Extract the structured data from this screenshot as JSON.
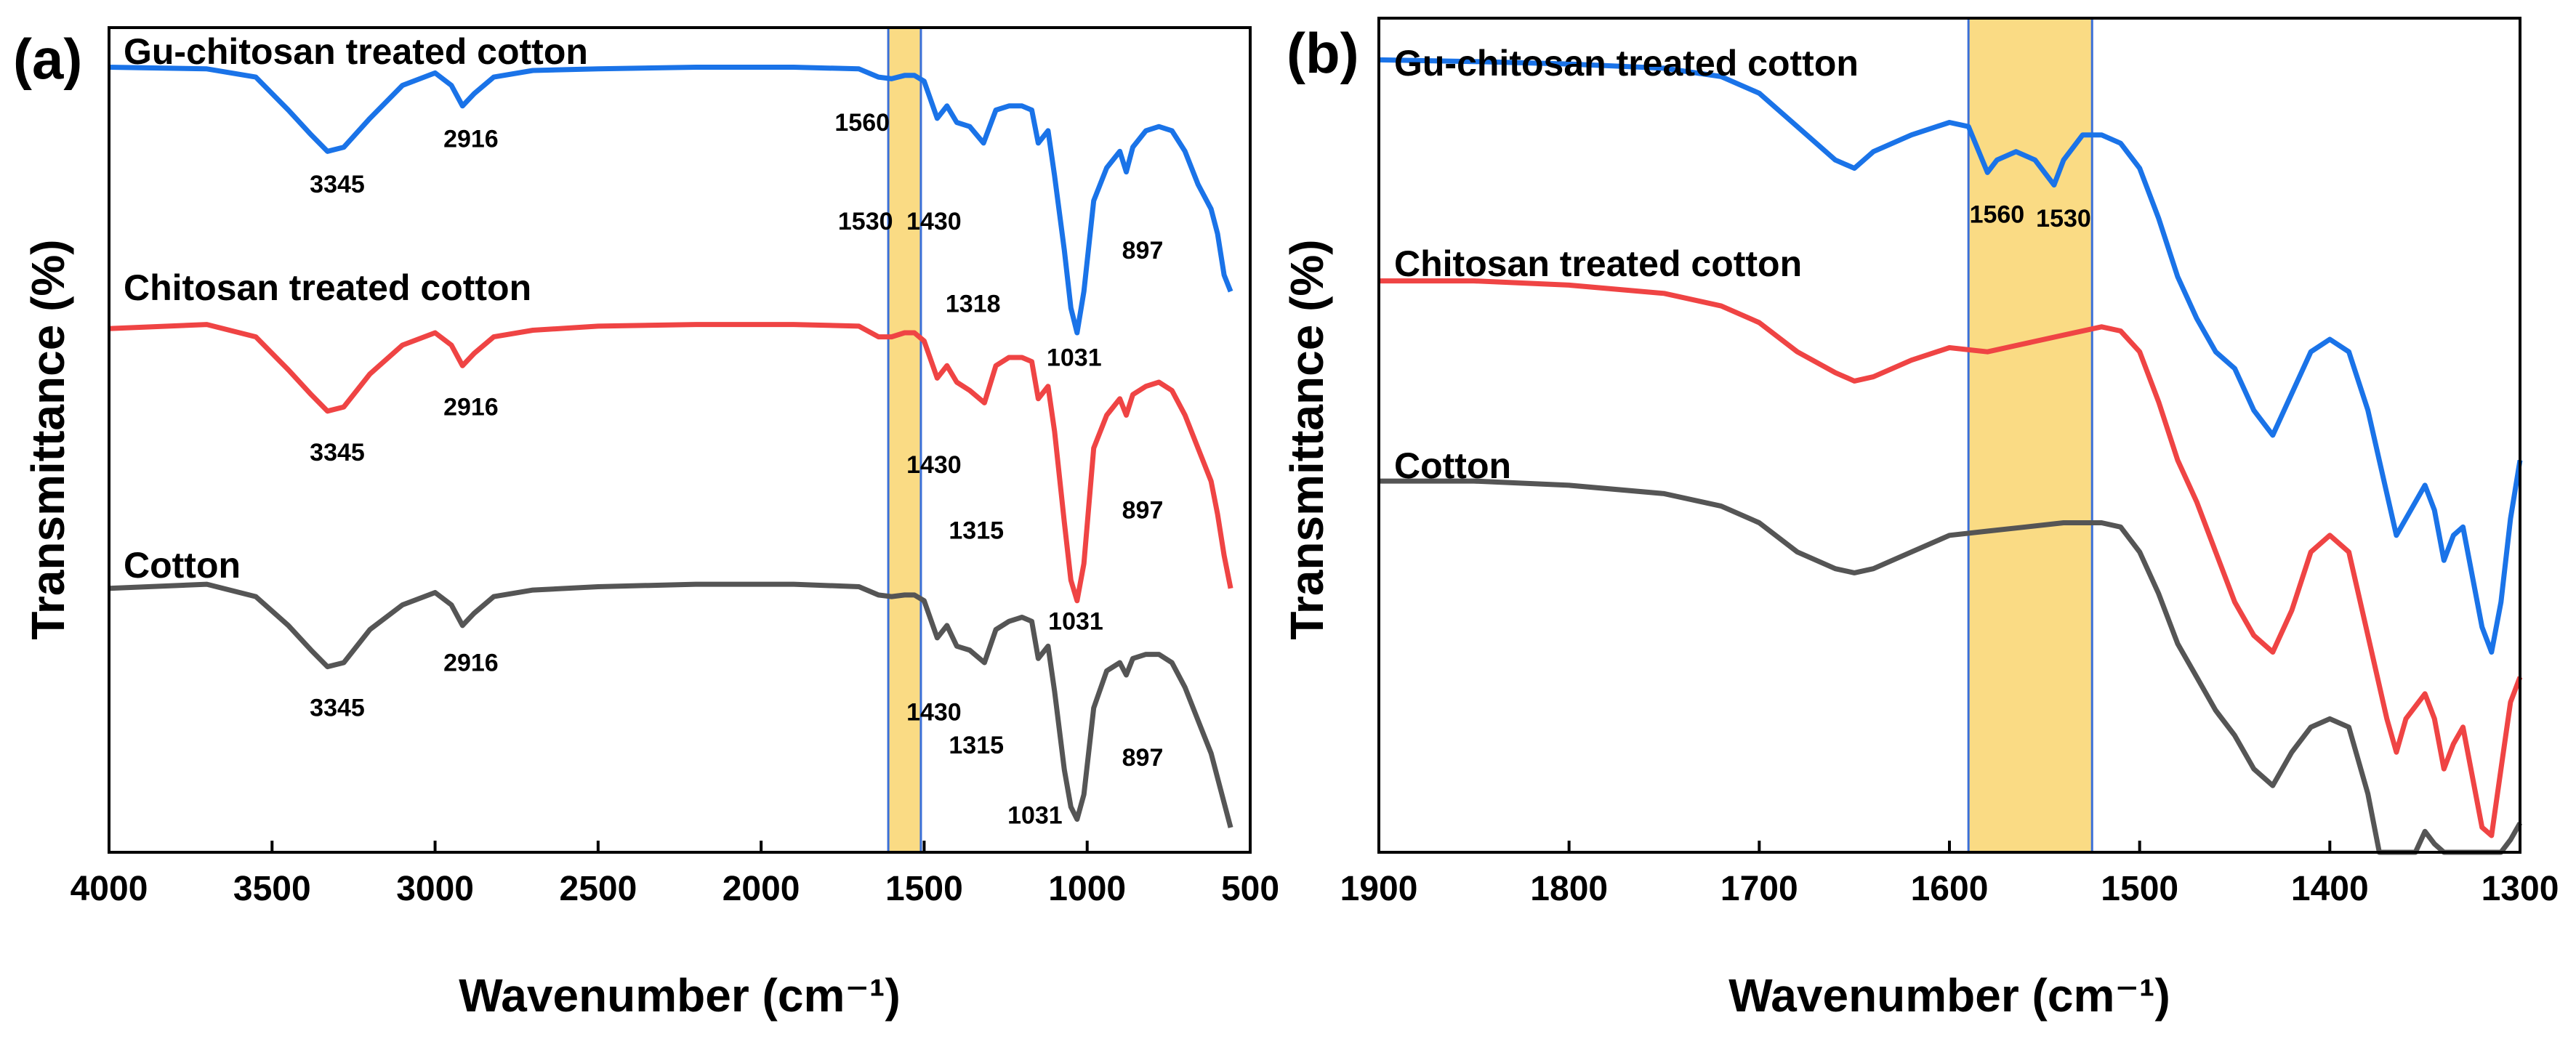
{
  "colors": {
    "gu": "#1a73e8",
    "chitosan": "#ef4444",
    "cotton": "#555555",
    "highlight": "#f9d56e",
    "highlight_edge": "#3a6fd8"
  },
  "chart_data": [
    {
      "type": "line",
      "panel": "(a)",
      "xlabel": "Wavenumber (cm⁻¹)",
      "ylabel": "Transmittance (%)",
      "xlim": [
        4000,
        500
      ],
      "x_reversed": true,
      "xticks": [
        4000,
        3500,
        3000,
        2500,
        2000,
        1500,
        1000,
        500
      ],
      "ylim": [
        0,
        10
      ],
      "highlight_band": [
        1610,
        1510
      ],
      "series": [
        {
          "name": "Gu-chitosan treated cotton",
          "color_key": "gu",
          "x": [
            4000,
            3700,
            3550,
            3450,
            3380,
            3330,
            3280,
            3200,
            3100,
            3000,
            2950,
            2916,
            2880,
            2820,
            2700,
            2500,
            2200,
            1900,
            1700,
            1640,
            1600,
            1560,
            1530,
            1500,
            1460,
            1430,
            1400,
            1360,
            1318,
            1280,
            1240,
            1200,
            1170,
            1150,
            1120,
            1100,
            1070,
            1050,
            1031,
            1010,
            980,
            940,
            900,
            880,
            860,
            820,
            780,
            740,
            700,
            660,
            620,
            600,
            580,
            560
          ],
          "y": [
            9.52,
            9.5,
            9.4,
            9.0,
            8.7,
            8.5,
            8.55,
            8.9,
            9.3,
            9.45,
            9.3,
            9.05,
            9.2,
            9.4,
            9.48,
            9.5,
            9.52,
            9.52,
            9.5,
            9.4,
            9.38,
            9.42,
            9.42,
            9.35,
            8.9,
            9.05,
            8.85,
            8.8,
            8.6,
            9.0,
            9.05,
            9.05,
            9.0,
            8.6,
            8.75,
            8.2,
            7.3,
            6.6,
            6.3,
            6.8,
            7.9,
            8.3,
            8.5,
            8.25,
            8.55,
            8.75,
            8.8,
            8.75,
            8.5,
            8.1,
            7.8,
            7.5,
            7.0,
            6.8
          ]
        },
        {
          "name": "Chitosan treated cotton",
          "color_key": "chitosan",
          "x": [
            4000,
            3700,
            3550,
            3450,
            3380,
            3330,
            3280,
            3200,
            3100,
            3000,
            2950,
            2916,
            2880,
            2820,
            2700,
            2500,
            2200,
            1900,
            1700,
            1640,
            1600,
            1560,
            1530,
            1500,
            1460,
            1430,
            1400,
            1360,
            1315,
            1280,
            1240,
            1200,
            1170,
            1150,
            1120,
            1100,
            1070,
            1050,
            1031,
            1010,
            980,
            940,
            900,
            880,
            860,
            820,
            780,
            740,
            700,
            660,
            620,
            600,
            580,
            560
          ],
          "y": [
            6.35,
            6.4,
            6.25,
            5.85,
            5.55,
            5.35,
            5.4,
            5.8,
            6.15,
            6.3,
            6.15,
            5.9,
            6.05,
            6.25,
            6.33,
            6.38,
            6.4,
            6.4,
            6.38,
            6.25,
            6.25,
            6.3,
            6.3,
            6.2,
            5.75,
            5.9,
            5.7,
            5.6,
            5.45,
            5.9,
            6.0,
            6.0,
            5.95,
            5.5,
            5.65,
            5.1,
            4.0,
            3.3,
            3.05,
            3.5,
            4.9,
            5.3,
            5.5,
            5.3,
            5.55,
            5.65,
            5.7,
            5.6,
            5.3,
            4.9,
            4.5,
            4.1,
            3.6,
            3.2
          ]
        },
        {
          "name": "Cotton",
          "color_key": "cotton",
          "x": [
            4000,
            3700,
            3550,
            3450,
            3380,
            3330,
            3280,
            3200,
            3100,
            3000,
            2950,
            2916,
            2880,
            2820,
            2700,
            2500,
            2200,
            1900,
            1700,
            1640,
            1600,
            1560,
            1530,
            1500,
            1460,
            1430,
            1400,
            1360,
            1315,
            1280,
            1240,
            1200,
            1170,
            1150,
            1120,
            1100,
            1070,
            1050,
            1031,
            1010,
            980,
            940,
            900,
            880,
            860,
            820,
            780,
            740,
            700,
            660,
            620,
            600,
            580,
            560
          ],
          "y": [
            3.2,
            3.25,
            3.1,
            2.75,
            2.45,
            2.25,
            2.3,
            2.7,
            3.0,
            3.15,
            3.0,
            2.75,
            2.9,
            3.1,
            3.18,
            3.22,
            3.25,
            3.25,
            3.22,
            3.12,
            3.1,
            3.12,
            3.12,
            3.05,
            2.6,
            2.75,
            2.5,
            2.45,
            2.3,
            2.7,
            2.8,
            2.85,
            2.8,
            2.35,
            2.5,
            1.95,
            1.0,
            0.55,
            0.4,
            0.7,
            1.75,
            2.2,
            2.3,
            2.15,
            2.35,
            2.4,
            2.4,
            2.3,
            2.0,
            1.6,
            1.2,
            0.9,
            0.6,
            0.3
          ]
        }
      ],
      "series_labels": [
        "Gu-chitosan treated cotton",
        "Chitosan treated cotton",
        "Cotton"
      ],
      "annotations": [
        {
          "text": "3345",
          "x": 3300,
          "y": 8.0
        },
        {
          "text": "2916",
          "x": 2890,
          "y": 8.55
        },
        {
          "text": "1560",
          "x": 1690,
          "y": 8.75
        },
        {
          "text": "1530",
          "x": 1680,
          "y": 7.55
        },
        {
          "text": "1430",
          "x": 1470,
          "y": 7.55
        },
        {
          "text": "1318",
          "x": 1350,
          "y": 6.55
        },
        {
          "text": "1031",
          "x": 1040,
          "y": 5.9
        },
        {
          "text": "897",
          "x": 830,
          "y": 7.2
        },
        {
          "text": "3345",
          "x": 3300,
          "y": 4.75
        },
        {
          "text": "2916",
          "x": 2890,
          "y": 5.3
        },
        {
          "text": "1430",
          "x": 1470,
          "y": 4.6
        },
        {
          "text": "1315",
          "x": 1340,
          "y": 3.8
        },
        {
          "text": "1031",
          "x": 1035,
          "y": 2.7
        },
        {
          "text": "897",
          "x": 830,
          "y": 4.05
        },
        {
          "text": "3345",
          "x": 3300,
          "y": 1.65
        },
        {
          "text": "2916",
          "x": 2890,
          "y": 2.2
        },
        {
          "text": "1430",
          "x": 1470,
          "y": 1.6
        },
        {
          "text": "1315",
          "x": 1340,
          "y": 1.2
        },
        {
          "text": "1031",
          "x": 1160,
          "y": 0.35
        },
        {
          "text": "897",
          "x": 830,
          "y": 1.05
        }
      ]
    },
    {
      "type": "line",
      "panel": "(b)",
      "xlabel": "Wavenumber (cm⁻¹)",
      "ylabel": "Transmittance (%)",
      "xlim": [
        1900,
        1300
      ],
      "x_reversed": true,
      "xticks": [
        1900,
        1800,
        1700,
        1600,
        1500,
        1400,
        1300
      ],
      "ylim": [
        0,
        10
      ],
      "highlight_band": [
        1590,
        1525
      ],
      "series": [
        {
          "name": "Gu-chitosan treated cotton",
          "color_key": "gu",
          "x": [
            1900,
            1850,
            1800,
            1750,
            1720,
            1700,
            1680,
            1660,
            1650,
            1640,
            1620,
            1600,
            1590,
            1580,
            1575,
            1565,
            1555,
            1545,
            1540,
            1530,
            1520,
            1510,
            1500,
            1490,
            1480,
            1470,
            1460,
            1450,
            1440,
            1430,
            1420,
            1410,
            1400,
            1390,
            1380,
            1370,
            1365,
            1360,
            1350,
            1345,
            1340,
            1335,
            1330,
            1325,
            1320,
            1315,
            1310,
            1305,
            1300
          ],
          "y": [
            9.5,
            9.48,
            9.45,
            9.4,
            9.3,
            9.1,
            8.7,
            8.3,
            8.2,
            8.4,
            8.6,
            8.75,
            8.7,
            8.15,
            8.3,
            8.4,
            8.3,
            8.0,
            8.3,
            8.6,
            8.6,
            8.5,
            8.2,
            7.6,
            6.9,
            6.4,
            6.0,
            5.8,
            5.3,
            5.0,
            5.5,
            6.0,
            6.15,
            6.0,
            5.3,
            4.3,
            3.8,
            4.0,
            4.4,
            4.1,
            3.5,
            3.8,
            3.9,
            3.3,
            2.7,
            2.4,
            3.0,
            4.0,
            4.7
          ]
        },
        {
          "name": "Chitosan treated cotton",
          "color_key": "chitosan",
          "x": [
            1900,
            1850,
            1800,
            1750,
            1720,
            1700,
            1680,
            1660,
            1650,
            1640,
            1620,
            1600,
            1580,
            1560,
            1540,
            1520,
            1510,
            1500,
            1490,
            1480,
            1470,
            1460,
            1450,
            1440,
            1430,
            1420,
            1410,
            1400,
            1390,
            1380,
            1370,
            1365,
            1360,
            1350,
            1345,
            1340,
            1335,
            1330,
            1325,
            1320,
            1315,
            1310,
            1305,
            1300
          ],
          "y": [
            6.85,
            6.85,
            6.8,
            6.7,
            6.55,
            6.35,
            6.0,
            5.75,
            5.65,
            5.7,
            5.9,
            6.05,
            6.0,
            6.1,
            6.2,
            6.3,
            6.25,
            6.0,
            5.4,
            4.7,
            4.2,
            3.6,
            3.0,
            2.6,
            2.4,
            2.9,
            3.6,
            3.8,
            3.6,
            2.6,
            1.6,
            1.2,
            1.6,
            1.9,
            1.6,
            1.0,
            1.3,
            1.5,
            0.9,
            0.3,
            0.2,
            1.0,
            1.8,
            2.1
          ]
        },
        {
          "name": "Cotton",
          "color_key": "cotton",
          "x": [
            1900,
            1850,
            1800,
            1750,
            1720,
            1700,
            1680,
            1660,
            1650,
            1640,
            1620,
            1600,
            1580,
            1560,
            1540,
            1520,
            1510,
            1500,
            1490,
            1480,
            1470,
            1460,
            1450,
            1440,
            1430,
            1420,
            1410,
            1400,
            1390,
            1380,
            1374,
            1355,
            1350,
            1345,
            1340,
            1315,
            1310,
            1305,
            1300
          ],
          "y": [
            4.45,
            4.45,
            4.4,
            4.3,
            4.15,
            3.95,
            3.6,
            3.4,
            3.35,
            3.4,
            3.6,
            3.8,
            3.85,
            3.9,
            3.95,
            3.95,
            3.9,
            3.6,
            3.1,
            2.5,
            2.1,
            1.7,
            1.4,
            1.0,
            0.8,
            1.2,
            1.5,
            1.6,
            1.5,
            0.7,
            0.0,
            0.0,
            0.25,
            0.1,
            0.0,
            0.0,
            0.0,
            0.15,
            0.35
          ]
        }
      ],
      "series_labels": [
        "Gu-chitosan treated cotton",
        "Chitosan treated cotton",
        "Cotton"
      ],
      "annotations": [
        {
          "text": "1560",
          "x": 1575,
          "y": 7.55
        },
        {
          "text": "1530",
          "x": 1540,
          "y": 7.5
        }
      ]
    }
  ]
}
